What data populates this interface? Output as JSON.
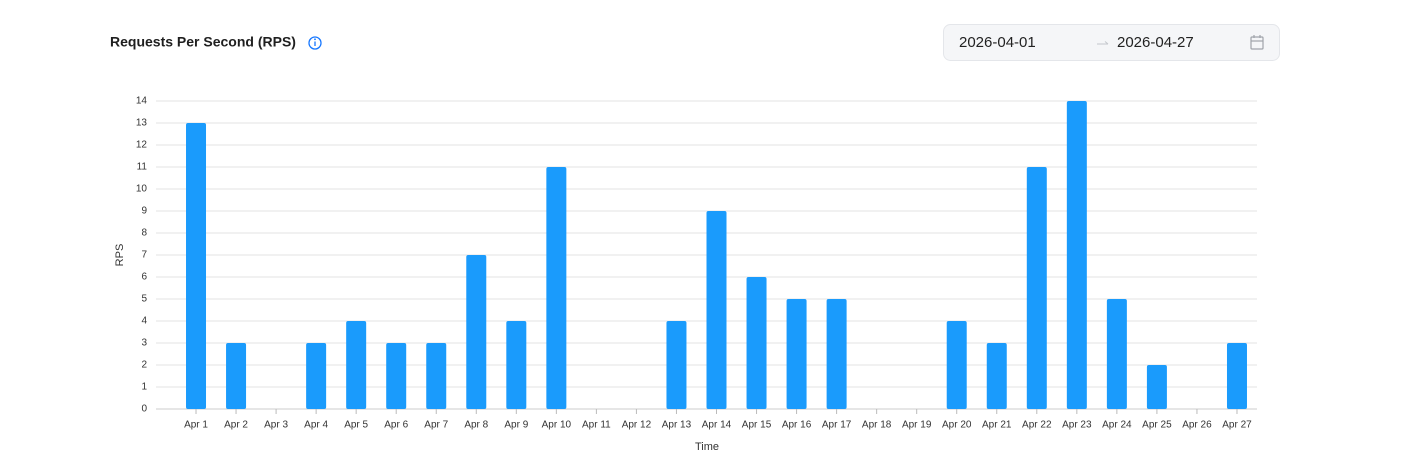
{
  "header": {
    "title": "Requests Per Second (RPS)",
    "start_date": "2026-04-01",
    "end_date": "2026-04-27"
  },
  "chart_data": {
    "type": "bar",
    "x_label": "Time",
    "y_label": "RPS",
    "categories": [
      "Apr 1",
      "Apr 2",
      "Apr 3",
      "Apr 4",
      "Apr 5",
      "Apr 6",
      "Apr 7",
      "Apr 8",
      "Apr 9",
      "Apr 10",
      "Apr 11",
      "Apr 12",
      "Apr 13",
      "Apr 14",
      "Apr 15",
      "Apr 16",
      "Apr 17",
      "Apr 18",
      "Apr 19",
      "Apr 20",
      "Apr 21",
      "Apr 22",
      "Apr 23",
      "Apr 24",
      "Apr 25",
      "Apr 26",
      "Apr 27"
    ],
    "values": [
      13,
      3,
      0,
      3,
      4,
      3,
      3,
      7,
      4,
      11,
      0,
      0,
      4,
      9,
      6,
      5,
      5,
      0,
      0,
      4,
      3,
      11,
      14,
      5,
      2,
      0,
      3
    ],
    "color": "#1a9bfc",
    "ylim": [
      0,
      14
    ],
    "yticks": [
      0,
      1,
      2,
      3,
      4,
      5,
      6,
      7,
      8,
      9,
      10,
      11,
      12,
      13,
      14
    ],
    "grid": true
  }
}
